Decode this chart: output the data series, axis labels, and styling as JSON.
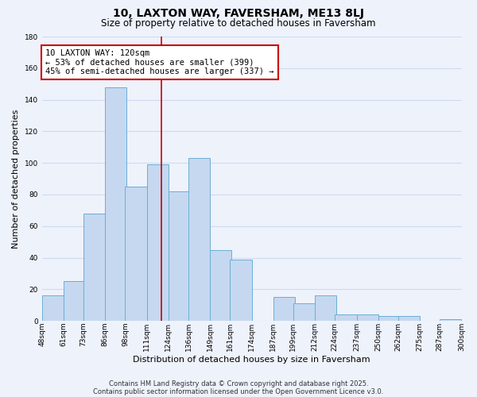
{
  "title_line1": "10, LAXTON WAY, FAVERSHAM, ME13 8LJ",
  "title_line2": "Size of property relative to detached houses in Faversham",
  "xlabel": "Distribution of detached houses by size in Faversham",
  "ylabel": "Number of detached properties",
  "bar_left_edges": [
    48,
    61,
    73,
    86,
    98,
    111,
    124,
    136,
    149,
    161,
    174,
    187,
    199,
    212,
    224,
    237,
    250,
    262,
    275,
    287
  ],
  "bar_heights": [
    16,
    25,
    68,
    148,
    85,
    99,
    82,
    103,
    45,
    39,
    0,
    15,
    11,
    16,
    4,
    4,
    3,
    3,
    0,
    1
  ],
  "bin_width": 13,
  "bar_color": "#c5d8f0",
  "bar_edgecolor": "#6baed6",
  "tick_labels": [
    "48sqm",
    "61sqm",
    "73sqm",
    "86sqm",
    "98sqm",
    "111sqm",
    "124sqm",
    "136sqm",
    "149sqm",
    "161sqm",
    "174sqm",
    "187sqm",
    "199sqm",
    "212sqm",
    "224sqm",
    "237sqm",
    "250sqm",
    "262sqm",
    "275sqm",
    "287sqm",
    "300sqm"
  ],
  "ylim": [
    0,
    180
  ],
  "yticks": [
    0,
    20,
    40,
    60,
    80,
    100,
    120,
    140,
    160,
    180
  ],
  "vline_x": 120,
  "vline_color": "#cc0000",
  "annotation_text_line1": "10 LAXTON WAY: 120sqm",
  "annotation_text_line2": "← 53% of detached houses are smaller (399)",
  "annotation_text_line3": "45% of semi-detached houses are larger (337) →",
  "footnote1": "Contains HM Land Registry data © Crown copyright and database right 2025.",
  "footnote2": "Contains public sector information licensed under the Open Government Licence v3.0.",
  "background_color": "#eef2fb",
  "grid_color": "#d0daf0",
  "title_fontsize": 10,
  "subtitle_fontsize": 8.5,
  "axis_label_fontsize": 8,
  "tick_fontsize": 6.5,
  "annotation_fontsize": 7.5,
  "footnote_fontsize": 6
}
